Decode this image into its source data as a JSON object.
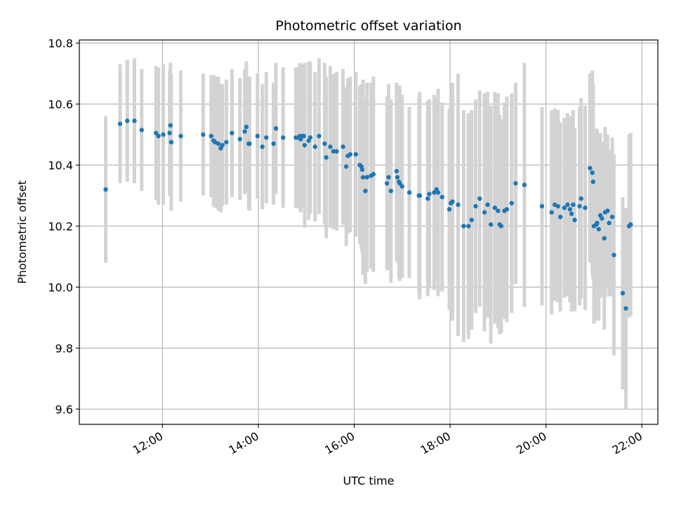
{
  "chart_data": {
    "type": "scatter",
    "title": "Photometric offset variation",
    "xlabel": "UTC time",
    "ylabel": "Photometric offset",
    "grid": true,
    "xlim": [
      "10:16",
      "22:20"
    ],
    "ylim": [
      9.55,
      10.81
    ],
    "x_ticks": [
      "12:00",
      "14:00",
      "16:00",
      "18:00",
      "20:00",
      "22:00"
    ],
    "y_ticks": [
      9.6,
      9.8,
      10.0,
      10.2,
      10.4,
      10.6,
      10.8
    ],
    "y_tick_labels": [
      "9.6",
      "9.8",
      "10.0",
      "10.2",
      "10.4",
      "10.6",
      "10.8"
    ],
    "colors": {
      "marker": "#1f77b4",
      "errorbar": "#d3d3d3",
      "grid": "#b0b0b0",
      "axes": "#000000"
    },
    "series": [
      {
        "x": [
          "10:49",
          "11:07",
          "11:16",
          "11:25",
          "11:34",
          "11:52",
          "11:55",
          "12:01",
          "12:09",
          "12:10",
          "12:11",
          "12:23",
          "12:51",
          "13:01",
          "13:04",
          "13:06",
          "13:10",
          "13:13",
          "13:15",
          "13:20",
          "13:27",
          "13:37",
          "13:43",
          "13:45",
          "13:48",
          "13:49",
          "13:59",
          "14:05",
          "14:10",
          "14:19",
          "14:22",
          "14:31",
          "14:47",
          "14:50",
          "14:52",
          "14:53",
          "14:55",
          "14:57",
          "14:58",
          "15:03",
          "15:05",
          "15:11",
          "15:16",
          "15:23",
          "15:25",
          "15:30",
          "15:34",
          "15:38",
          "15:46",
          "15:50",
          "15:52",
          "15:55",
          "16:02",
          "16:07",
          "16:09",
          "16:10",
          "16:11",
          "16:14",
          "16:16",
          "16:21",
          "16:24",
          "16:41",
          "16:43",
          "16:46",
          "16:53",
          "16:54",
          "16:56",
          "16:57",
          "17:00",
          "17:09",
          "17:21",
          "17:22",
          "17:32",
          "17:34",
          "17:40",
          "17:43",
          "17:45",
          "17:50",
          "17:59",
          "18:01",
          "18:03",
          "18:10",
          "18:17",
          "18:23",
          "18:27",
          "18:32",
          "18:37",
          "18:43",
          "18:47",
          "18:51",
          "18:56",
          "19:00",
          "19:02",
          "19:04",
          "19:08",
          "19:11",
          "19:17",
          "19:22",
          "19:33",
          "19:55",
          "20:07",
          "20:11",
          "20:15",
          "20:18",
          "20:23",
          "20:27",
          "20:30",
          "20:32",
          "20:34",
          "20:36",
          "20:42",
          "20:44",
          "20:49",
          "20:55",
          "20:58",
          "20:59",
          "21:00",
          "21:03",
          "21:04",
          "21:06",
          "21:08",
          "21:10",
          "21:13",
          "21:14",
          "21:17",
          "21:19",
          "21:23",
          "21:25",
          "21:36",
          "21:40",
          "21:44",
          "21:46"
        ],
        "y": [
          10.32,
          10.535,
          10.545,
          10.545,
          10.515,
          10.505,
          10.495,
          10.5,
          10.505,
          10.53,
          10.475,
          10.495,
          10.5,
          10.495,
          10.48,
          10.475,
          10.47,
          10.455,
          10.465,
          10.475,
          10.505,
          10.485,
          10.51,
          10.525,
          10.47,
          10.47,
          10.495,
          10.46,
          10.49,
          10.47,
          10.52,
          10.49,
          10.49,
          10.49,
          10.495,
          10.485,
          10.495,
          10.495,
          10.465,
          10.48,
          10.49,
          10.46,
          10.495,
          10.47,
          10.425,
          10.46,
          10.445,
          10.445,
          10.46,
          10.395,
          10.43,
          10.435,
          10.435,
          10.4,
          10.395,
          10.385,
          10.36,
          10.315,
          10.36,
          10.365,
          10.37,
          10.34,
          10.36,
          10.315,
          10.38,
          10.36,
          10.345,
          10.34,
          10.33,
          10.31,
          10.3,
          10.3,
          10.29,
          10.305,
          10.31,
          10.32,
          10.31,
          10.295,
          10.255,
          10.275,
          10.28,
          10.27,
          10.2,
          10.2,
          10.22,
          10.265,
          10.29,
          10.245,
          10.27,
          10.205,
          10.26,
          10.25,
          10.205,
          10.2,
          10.25,
          10.255,
          10.275,
          10.34,
          10.335,
          10.265,
          10.245,
          10.27,
          10.265,
          10.23,
          10.26,
          10.27,
          10.255,
          10.24,
          10.27,
          10.22,
          10.265,
          10.29,
          10.26,
          10.39,
          10.375,
          10.345,
          10.2,
          10.205,
          10.21,
          10.19,
          10.235,
          10.225,
          10.16,
          10.245,
          10.25,
          10.21,
          10.23,
          10.105,
          9.98,
          9.93,
          10.2,
          10.205
        ],
        "err": [
          0.24,
          0.195,
          0.2,
          0.205,
          0.2,
          0.22,
          0.225,
          0.23,
          0.205,
          0.205,
          0.225,
          0.215,
          0.2,
          0.2,
          0.215,
          0.215,
          0.22,
          0.21,
          0.2,
          0.205,
          0.21,
          0.2,
          0.205,
          0.215,
          0.215,
          0.22,
          0.205,
          0.205,
          0.215,
          0.2,
          0.215,
          0.23,
          0.23,
          0.23,
          0.24,
          0.24,
          0.235,
          0.235,
          0.27,
          0.26,
          0.25,
          0.245,
          0.255,
          0.265,
          0.265,
          0.265,
          0.255,
          0.26,
          0.255,
          0.26,
          0.255,
          0.255,
          0.27,
          0.26,
          0.27,
          0.275,
          0.32,
          0.305,
          0.31,
          0.305,
          0.32,
          0.285,
          0.305,
          0.3,
          0.29,
          0.28,
          0.315,
          0.32,
          0.3,
          0.28,
          0.32,
          0.34,
          0.32,
          0.31,
          0.32,
          0.3,
          0.34,
          0.31,
          0.33,
          0.33,
          0.39,
          0.43,
          0.38,
          0.37,
          0.36,
          0.35,
          0.355,
          0.39,
          0.37,
          0.39,
          0.38,
          0.385,
          0.36,
          0.35,
          0.355,
          0.37,
          0.36,
          0.33,
          0.4,
          0.325,
          0.335,
          0.315,
          0.315,
          0.31,
          0.295,
          0.3,
          0.305,
          0.32,
          0.31,
          0.3,
          0.325,
          0.33,
          0.335,
          0.31,
          0.335,
          0.32,
          0.32,
          0.315,
          0.305,
          0.3,
          0.27,
          0.25,
          0.3,
          0.28,
          0.25,
          0.24,
          0.26,
          0.33,
          0.315,
          0.33,
          0.3,
          0.3
        ],
        "marker": "circle"
      }
    ]
  }
}
